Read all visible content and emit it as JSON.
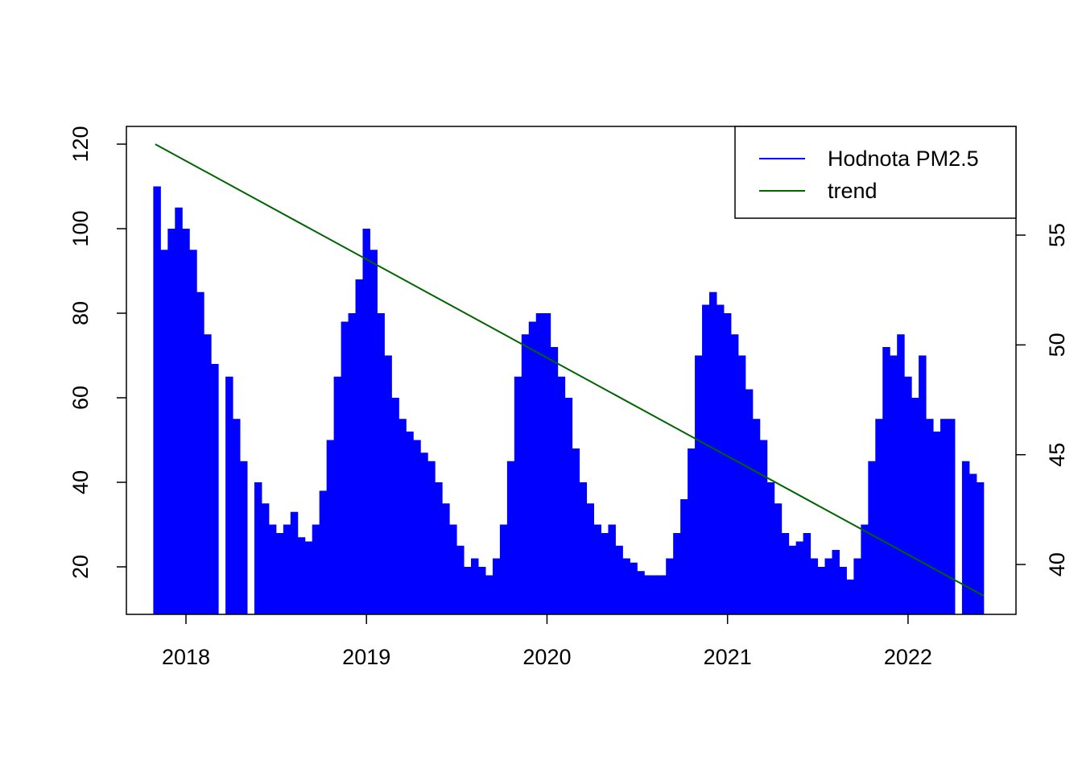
{
  "chart_data": {
    "type": "spike",
    "series": [
      {
        "name": "Hodnota PM2.5",
        "color": "#0000ff",
        "x": [
          2017.84,
          2017.88,
          2017.92,
          2017.96,
          2018.0,
          2018.04,
          2018.08,
          2018.12,
          2018.16,
          2018.2,
          2018.24,
          2018.28,
          2018.32,
          2018.36,
          2018.4,
          2018.44,
          2018.48,
          2018.52,
          2018.56,
          2018.6,
          2018.64,
          2018.68,
          2018.72,
          2018.76,
          2018.8,
          2018.84,
          2018.88,
          2018.92,
          2018.96,
          2019.0,
          2019.04,
          2019.08,
          2019.12,
          2019.16,
          2019.2,
          2019.24,
          2019.28,
          2019.32,
          2019.36,
          2019.4,
          2019.44,
          2019.48,
          2019.52,
          2019.56,
          2019.6,
          2019.64,
          2019.68,
          2019.72,
          2019.76,
          2019.8,
          2019.84,
          2019.88,
          2019.92,
          2019.96,
          2020.0,
          2020.04,
          2020.08,
          2020.12,
          2020.16,
          2020.2,
          2020.24,
          2020.28,
          2020.32,
          2020.36,
          2020.4,
          2020.44,
          2020.48,
          2020.52,
          2020.56,
          2020.6,
          2020.64,
          2020.68,
          2020.72,
          2020.76,
          2020.8,
          2020.84,
          2020.88,
          2020.92,
          2020.96,
          2021.0,
          2021.04,
          2021.08,
          2021.12,
          2021.16,
          2021.2,
          2021.24,
          2021.28,
          2021.32,
          2021.36,
          2021.4,
          2021.44,
          2021.48,
          2021.52,
          2021.56,
          2021.6,
          2021.64,
          2021.68,
          2021.72,
          2021.76,
          2021.8,
          2021.84,
          2021.88,
          2021.92,
          2021.96,
          2022.0,
          2022.04,
          2022.08,
          2022.12,
          2022.16,
          2022.2,
          2022.24,
          2022.28,
          2022.32,
          2022.36,
          2022.4
        ],
        "values": [
          110,
          95,
          100,
          105,
          100,
          95,
          85,
          75,
          68,
          null,
          65,
          55,
          45,
          null,
          40,
          35,
          30,
          28,
          30,
          33,
          27,
          26,
          30,
          38,
          50,
          65,
          78,
          80,
          88,
          100,
          95,
          80,
          70,
          60,
          55,
          52,
          50,
          47,
          45,
          40,
          35,
          30,
          25,
          20,
          22,
          20,
          18,
          22,
          30,
          45,
          65,
          75,
          78,
          80,
          80,
          72,
          65,
          60,
          48,
          40,
          35,
          30,
          28,
          30,
          25,
          22,
          21,
          19,
          18,
          18,
          18,
          22,
          28,
          36,
          48,
          70,
          82,
          85,
          82,
          80,
          75,
          70,
          62,
          55,
          50,
          40,
          35,
          28,
          25,
          26,
          28,
          22,
          20,
          22,
          24,
          20,
          17,
          22,
          30,
          45,
          55,
          72,
          70,
          75,
          65,
          60,
          70,
          55,
          52,
          55,
          55,
          null,
          45,
          42,
          40
        ]
      },
      {
        "name": "trend",
        "color": "#006400",
        "axis": "y2",
        "x": [
          2017.83,
          2022.42
        ],
        "values": [
          59.14,
          38.57
        ]
      }
    ],
    "xlim": [
      2017.67,
      2022.598
    ],
    "xticks": [
      2018,
      2019,
      2020,
      2021,
      2022
    ],
    "ylim": [
      8.76,
      124.19
    ],
    "yticks": [
      20,
      40,
      60,
      80,
      100,
      120
    ],
    "y2lim": [
      37.73,
      59.95
    ],
    "y2ticks": [
      40,
      45,
      50,
      55
    ],
    "legend": "top-right"
  }
}
